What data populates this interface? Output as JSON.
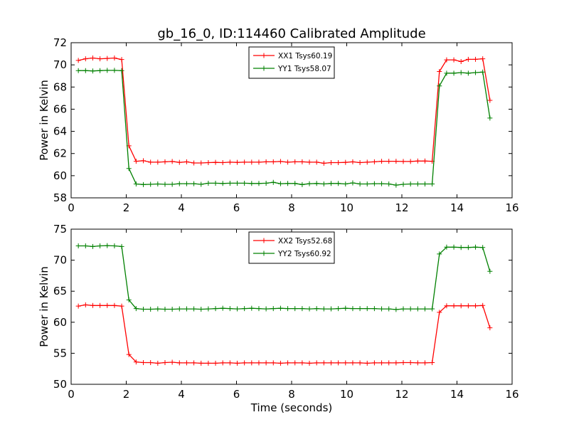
{
  "figure": {
    "title": "gb_16_0, ID:114460 Calibrated Amplitude",
    "xlabel": "Time (seconds)"
  },
  "chart_data": [
    {
      "type": "line",
      "title": "gb_16_0, ID:114460 Calibrated Amplitude",
      "xlabel": "",
      "ylabel": "Power in Kelvin",
      "xlim": [
        0,
        16
      ],
      "ylim": [
        58,
        72
      ],
      "xticks": [
        0,
        2,
        4,
        6,
        8,
        10,
        12,
        14,
        16
      ],
      "yticks": [
        58,
        60,
        62,
        64,
        66,
        68,
        70,
        72
      ],
      "grid": false,
      "legend_position": "top-center",
      "x": [
        0.262,
        0.524,
        0.786,
        1.048,
        1.31,
        1.572,
        1.834,
        2.096,
        2.358,
        2.62,
        2.882,
        3.144,
        3.406,
        3.668,
        3.93,
        4.192,
        4.454,
        4.716,
        4.978,
        5.24,
        5.502,
        5.764,
        6.026,
        6.288,
        6.55,
        6.812,
        7.074,
        7.336,
        7.598,
        7.86,
        8.122,
        8.384,
        8.646,
        8.908,
        9.17,
        9.432,
        9.694,
        9.956,
        10.218,
        10.48,
        10.742,
        11.004,
        11.266,
        11.528,
        11.79,
        12.052,
        12.314,
        12.576,
        12.838,
        13.1,
        13.362,
        13.624,
        13.886,
        14.148,
        14.41,
        14.672,
        14.934,
        15.196
      ],
      "series": [
        {
          "name": "XX1 Tsys60.19",
          "color": "#ff0000",
          "values": [
            70.4,
            70.55,
            70.62,
            70.55,
            70.58,
            70.62,
            70.48,
            62.7,
            61.3,
            61.35,
            61.22,
            61.22,
            61.25,
            61.28,
            61.2,
            61.25,
            61.15,
            61.15,
            61.18,
            61.2,
            61.18,
            61.22,
            61.2,
            61.22,
            61.22,
            61.22,
            61.25,
            61.25,
            61.28,
            61.22,
            61.25,
            61.25,
            61.22,
            61.22,
            61.12,
            61.18,
            61.18,
            61.2,
            61.25,
            61.18,
            61.22,
            61.25,
            61.3,
            61.3,
            61.3,
            61.28,
            61.28,
            61.32,
            61.32,
            61.3,
            69.4,
            70.45,
            70.45,
            70.3,
            70.5,
            70.5,
            70.55,
            66.8
          ]
        },
        {
          "name": "YY1 Tsys58.07",
          "color": "#008000",
          "values": [
            69.48,
            69.48,
            69.45,
            69.48,
            69.5,
            69.5,
            69.48,
            60.65,
            59.25,
            59.2,
            59.22,
            59.25,
            59.22,
            59.22,
            59.28,
            59.28,
            59.28,
            59.22,
            59.32,
            59.32,
            59.3,
            59.32,
            59.32,
            59.32,
            59.3,
            59.3,
            59.32,
            59.4,
            59.28,
            59.3,
            59.3,
            59.2,
            59.28,
            59.3,
            59.25,
            59.3,
            59.3,
            59.25,
            59.35,
            59.25,
            59.25,
            59.28,
            59.28,
            59.25,
            59.15,
            59.22,
            59.25,
            59.25,
            59.25,
            59.25,
            68.1,
            69.25,
            69.25,
            69.3,
            69.25,
            69.3,
            69.35,
            65.2
          ]
        }
      ]
    },
    {
      "type": "line",
      "title": "",
      "xlabel": "Time (seconds)",
      "ylabel": "Power in Kelvin",
      "xlim": [
        0,
        16
      ],
      "ylim": [
        50,
        75
      ],
      "xticks": [
        0,
        2,
        4,
        6,
        8,
        10,
        12,
        14,
        16
      ],
      "yticks": [
        50,
        55,
        60,
        65,
        70,
        75
      ],
      "grid": false,
      "legend_position": "top-center",
      "x": [
        0.262,
        0.524,
        0.786,
        1.048,
        1.31,
        1.572,
        1.834,
        2.096,
        2.358,
        2.62,
        2.882,
        3.144,
        3.406,
        3.668,
        3.93,
        4.192,
        4.454,
        4.716,
        4.978,
        5.24,
        5.502,
        5.764,
        6.026,
        6.288,
        6.55,
        6.812,
        7.074,
        7.336,
        7.598,
        7.86,
        8.122,
        8.384,
        8.646,
        8.908,
        9.17,
        9.432,
        9.694,
        9.956,
        10.218,
        10.48,
        10.742,
        11.004,
        11.266,
        11.528,
        11.79,
        12.052,
        12.314,
        12.576,
        12.838,
        13.1,
        13.362,
        13.624,
        13.886,
        14.148,
        14.41,
        14.672,
        14.934,
        15.196
      ],
      "series": [
        {
          "name": "XX2 Tsys52.68",
          "color": "#ff0000",
          "values": [
            62.6,
            62.8,
            62.7,
            62.7,
            62.7,
            62.7,
            62.6,
            54.8,
            53.6,
            53.5,
            53.5,
            53.4,
            53.5,
            53.55,
            53.45,
            53.45,
            53.45,
            53.4,
            53.4,
            53.4,
            53.45,
            53.45,
            53.4,
            53.45,
            53.45,
            53.45,
            53.45,
            53.45,
            53.4,
            53.45,
            53.45,
            53.45,
            53.4,
            53.45,
            53.45,
            53.45,
            53.45,
            53.45,
            53.45,
            53.45,
            53.4,
            53.45,
            53.45,
            53.45,
            53.45,
            53.5,
            53.5,
            53.45,
            53.45,
            53.5,
            61.6,
            62.65,
            62.65,
            62.65,
            62.65,
            62.65,
            62.7,
            59.1
          ]
        },
        {
          "name": "YY2 Tsys60.92",
          "color": "#008000",
          "values": [
            72.3,
            72.3,
            72.2,
            72.3,
            72.35,
            72.3,
            72.2,
            63.6,
            62.2,
            62.1,
            62.1,
            62.15,
            62.1,
            62.1,
            62.15,
            62.15,
            62.15,
            62.1,
            62.15,
            62.2,
            62.25,
            62.2,
            62.15,
            62.2,
            62.25,
            62.2,
            62.15,
            62.2,
            62.25,
            62.2,
            62.2,
            62.2,
            62.15,
            62.2,
            62.15,
            62.15,
            62.2,
            62.25,
            62.2,
            62.2,
            62.2,
            62.2,
            62.15,
            62.15,
            62.05,
            62.15,
            62.15,
            62.15,
            62.15,
            62.15,
            71.0,
            72.1,
            72.1,
            72.05,
            72.05,
            72.1,
            72.05,
            68.2
          ]
        }
      ]
    }
  ]
}
